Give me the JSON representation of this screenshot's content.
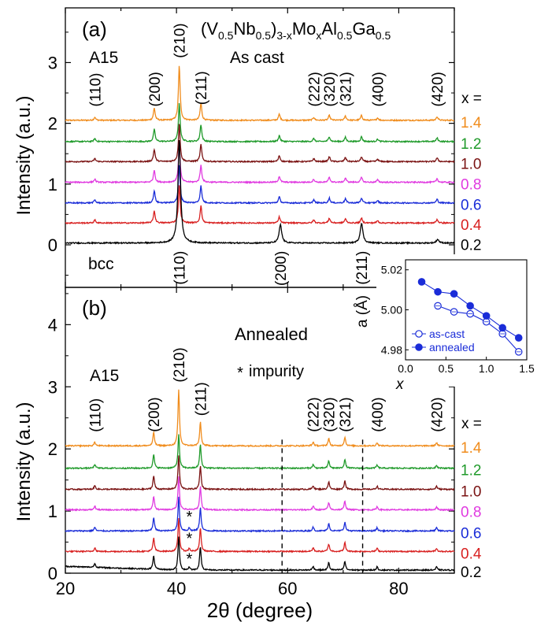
{
  "figure": {
    "compound_main": "(V",
    "compound_parts": [
      "0.5",
      "Nb",
      "0.5",
      ")",
      "3-x",
      "Mo",
      "x",
      "Al",
      "0.5",
      "Ga",
      "0.5"
    ]
  },
  "chart_data": [
    {
      "type": "line",
      "panel_label": "(a)",
      "title": "As cast",
      "phase_label": "A15",
      "bottom_phase_label": "bcc",
      "xlabel": "2θ (degree)",
      "ylabel": "Intensity (a.u.)",
      "xlim": [
        20,
        90
      ],
      "ylim": [
        -0.7,
        3.9
      ],
      "y_ticks": [
        "0",
        "1",
        "2",
        "3"
      ],
      "x_label_title": "x =",
      "x_values": [
        "1.4",
        "1.2",
        "1.0",
        "0.8",
        "0.6",
        "0.4",
        "0.2"
      ],
      "series_colors": [
        "#f08c1c",
        "#1f9a2a",
        "#7a1212",
        "#e03ae0",
        "#1a2cd8",
        "#d82020",
        "#000000"
      ],
      "offsets": [
        2.05,
        1.7,
        1.37,
        1.03,
        0.69,
        0.36,
        0.03
      ],
      "a15_peaks": [
        {
          "pos": 25.3,
          "label": "(110)",
          "h": 0.05
        },
        {
          "pos": 36.0,
          "label": "(200)",
          "h": 0.2
        },
        {
          "pos": 40.5,
          "label": "(210)",
          "h": 0.9
        },
        {
          "pos": 44.4,
          "label": "(211)",
          "h": 0.28
        },
        {
          "pos": 58.5,
          "label": "",
          "h": 0.1
        },
        {
          "pos": 64.7,
          "label": "(222)",
          "h": 0.05
        },
        {
          "pos": 67.5,
          "label": "(320)",
          "h": 0.08
        },
        {
          "pos": 70.4,
          "label": "(321)",
          "h": 0.07
        },
        {
          "pos": 73.3,
          "label": "",
          "h": 0.08
        },
        {
          "pos": 76.2,
          "label": "(400)",
          "h": 0.04
        },
        {
          "pos": 86.9,
          "label": "(420)",
          "h": 0.06
        }
      ],
      "bcc_peaks": [
        {
          "pos": 40.5,
          "label": "(110)",
          "h": 1.7
        },
        {
          "pos": 58.7,
          "label": "(200)",
          "h": 0.3
        },
        {
          "pos": 73.3,
          "label": "(211)",
          "h": 0.33
        },
        {
          "pos": 87.0,
          "label": "",
          "h": 0.06
        }
      ]
    },
    {
      "type": "line",
      "panel_label": "(b)",
      "title": "Annealed",
      "phase_label": "A15",
      "impurity_label": "impurity",
      "xlabel": "2θ (degree)",
      "ylabel": "Intensity (a.u.)",
      "xlim": [
        20,
        90
      ],
      "ylim": [
        0,
        4.6
      ],
      "y_ticks": [
        "0",
        "1",
        "2",
        "3",
        "4"
      ],
      "x_ticks": [
        "20",
        "40",
        "60",
        "80"
      ],
      "x_label_title": "x =",
      "x_values": [
        "1.4",
        "1.2",
        "1.0",
        "0.8",
        "0.6",
        "0.4",
        "0.2"
      ],
      "series_colors": [
        "#f08c1c",
        "#1f9a2a",
        "#7a1212",
        "#e03ae0",
        "#1a2cd8",
        "#d82020",
        "#000000"
      ],
      "offsets": [
        2.05,
        1.69,
        1.35,
        1.02,
        0.68,
        0.35,
        0.05
      ],
      "a15_peaks": [
        {
          "pos": 25.3,
          "label": "(110)",
          "h": 0.06
        },
        {
          "pos": 35.9,
          "label": "(200)",
          "h": 0.22
        },
        {
          "pos": 40.4,
          "label": "(210)",
          "h": 0.9
        },
        {
          "pos": 44.3,
          "label": "(211)",
          "h": 0.38
        },
        {
          "pos": 64.6,
          "label": "(222)",
          "h": 0.06
        },
        {
          "pos": 67.4,
          "label": "(320)",
          "h": 0.12
        },
        {
          "pos": 70.3,
          "label": "(321)",
          "h": 0.14
        },
        {
          "pos": 76.1,
          "label": "(400)",
          "h": 0.05
        },
        {
          "pos": 86.8,
          "label": "(420)",
          "h": 0.05
        }
      ],
      "impurity_marks_x": 42.3,
      "dashed_lines_x": [
        59.0,
        73.5
      ]
    },
    {
      "type": "scatter",
      "xlabel": "x",
      "ylabel": "a (Å)",
      "xlim": [
        0.0,
        1.5
      ],
      "ylim": [
        4.975,
        5.025
      ],
      "x_ticks": [
        "0.0",
        "0.5",
        "1.0",
        "1.5"
      ],
      "y_ticks": [
        "4.98",
        "5.00",
        "5.02"
      ],
      "legend": "lower-left",
      "series": [
        {
          "name": "as-cast",
          "x": [
            0.4,
            0.6,
            0.8,
            1.0,
            1.2,
            1.4
          ],
          "y": [
            5.002,
            4.999,
            4.998,
            4.994,
            4.988,
            4.979
          ],
          "marker": "open",
          "color": "#1a2cd8"
        },
        {
          "name": "annealed",
          "x": [
            0.2,
            0.4,
            0.6,
            0.8,
            1.0,
            1.2,
            1.4
          ],
          "y": [
            5.014,
            5.009,
            5.008,
            5.002,
            4.997,
            4.991,
            4.986
          ],
          "marker": "filled",
          "color": "#1a2cd8"
        }
      ]
    }
  ]
}
